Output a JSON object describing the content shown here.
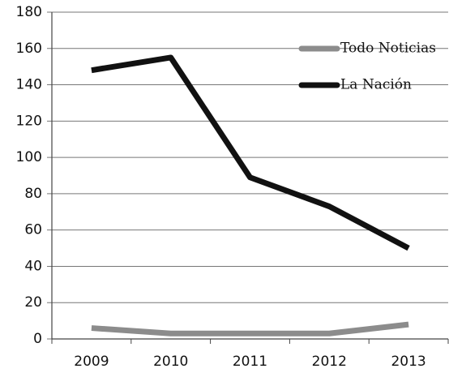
{
  "chart_data": {
    "type": "line",
    "categories": [
      "2009",
      "2010",
      "2011",
      "2012",
      "2013"
    ],
    "series": [
      {
        "name": "Todo Noticias",
        "color": "#8c8c8c",
        "values": [
          6,
          3,
          3,
          3,
          8
        ]
      },
      {
        "name": "La Nación",
        "color": "#111111",
        "values": [
          148,
          155,
          89,
          73,
          50
        ]
      }
    ],
    "ylim": [
      0,
      180
    ],
    "yticks": [
      0,
      20,
      40,
      60,
      80,
      100,
      120,
      140,
      160,
      180
    ],
    "grid": true,
    "legend": "top-right"
  }
}
